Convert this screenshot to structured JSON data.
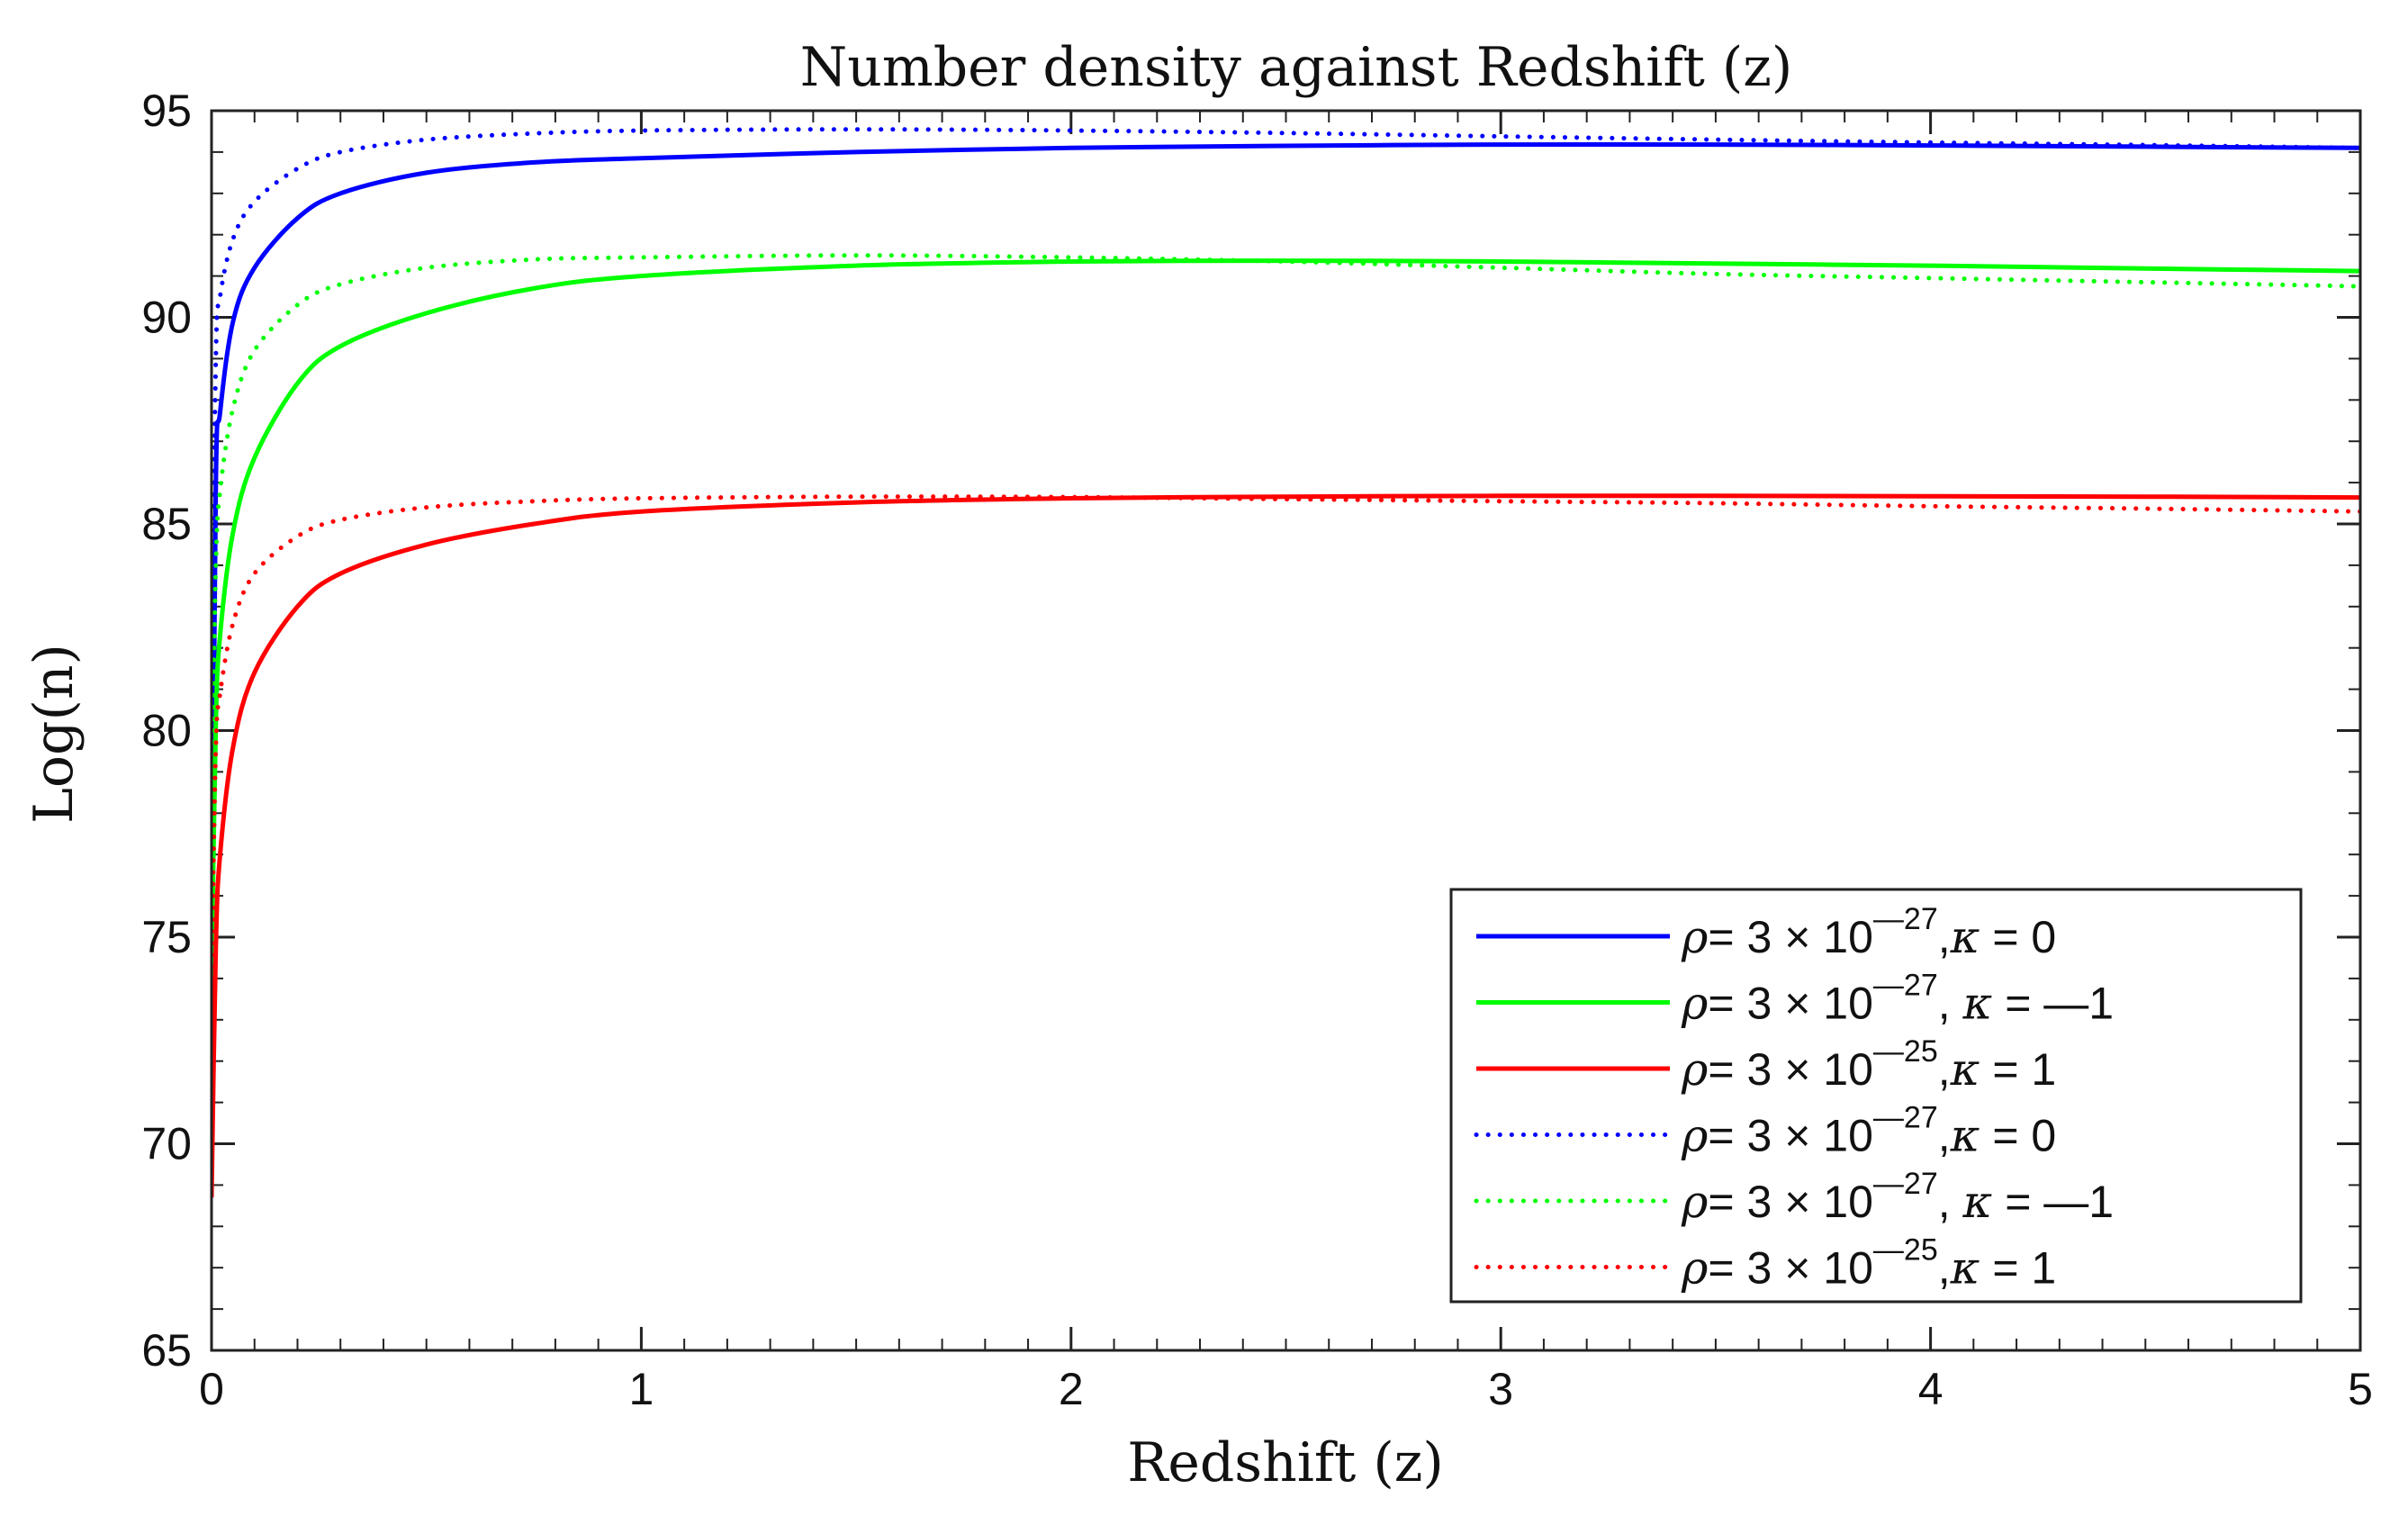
{
  "chart_data": {
    "type": "line",
    "title": "Number density against Redshift (z)",
    "xlabel": "Redshift (z)",
    "ylabel": "Log(n)",
    "xlim": [
      0,
      5
    ],
    "ylim": [
      65,
      95
    ],
    "xticks": [
      0,
      1,
      2,
      3,
      4,
      5
    ],
    "yticks": [
      65,
      70,
      75,
      80,
      85,
      90,
      95
    ],
    "x": [
      0.0,
      0.01,
      0.02,
      0.05,
      0.1,
      0.2,
      0.3,
      0.5,
      0.75,
      1.0,
      1.5,
      2.0,
      2.5,
      3.0,
      3.5,
      4.0,
      4.5,
      5.0
    ],
    "legend_location": "bottom-right",
    "series": [
      {
        "name": "rho=3e-27, kappa=0 (solid)",
        "color": "#0000ff",
        "style": "solid",
        "legend": {
          "rho": "ρ",
          "eq1": "= 3 × 10",
          "exp": "—27",
          "sep": ",",
          "kappa": "κ",
          "eq2": " = 0"
        },
        "values": [
          74.0,
          86.0,
          87.7,
          89.9,
          91.2,
          92.4,
          93.0,
          93.5,
          93.75,
          93.85,
          94.0,
          94.1,
          94.15,
          94.18,
          94.18,
          94.16,
          94.13,
          94.1
        ]
      },
      {
        "name": "rho=3e-27, kappa=-1 (solid)",
        "color": "#00ff00",
        "style": "solid",
        "legend": {
          "rho": "ρ",
          "eq1": "= 3 × 10",
          "exp": "—27",
          "sep": ", ",
          "kappa": "κ",
          "eq2": " = —1"
        },
        "values": [
          74.0,
          80.2,
          82.3,
          84.8,
          86.6,
          88.4,
          89.3,
          90.1,
          90.7,
          91.0,
          91.25,
          91.35,
          91.37,
          91.35,
          91.3,
          91.25,
          91.18,
          91.12
        ]
      },
      {
        "name": "rho=3e-25, kappa=1 (solid)",
        "color": "#ff0000",
        "style": "solid",
        "legend": {
          "rho": "ρ",
          "eq1": "= 3 × 10",
          "exp": "—25",
          "sep": ",",
          "kappa": "κ",
          "eq2": " = 1"
        },
        "values": [
          68.7,
          74.8,
          77.0,
          79.6,
          81.4,
          83.0,
          83.8,
          84.5,
          85.0,
          85.3,
          85.52,
          85.62,
          85.66,
          85.68,
          85.68,
          85.67,
          85.66,
          85.64
        ]
      },
      {
        "name": "rho=3e-27, kappa=0 (dotted)",
        "color": "#0000ff",
        "style": "dotted",
        "legend": {
          "rho": "ρ",
          "eq1": "= 3 × 10",
          "exp": "—27",
          "sep": ",",
          "kappa": "κ",
          "eq2": " = 0"
        },
        "values": [
          80.0,
          89.0,
          90.5,
          91.9,
          92.8,
          93.6,
          94.0,
          94.3,
          94.45,
          94.52,
          94.55,
          94.52,
          94.46,
          94.38,
          94.3,
          94.23,
          94.17,
          94.1
        ]
      },
      {
        "name": "rho=3e-27, kappa=-1 (dotted)",
        "color": "#00ff00",
        "style": "dotted",
        "legend": {
          "rho": "ρ",
          "eq1": "= 3 × 10",
          "exp": "—27",
          "sep": ", ",
          "kappa": "κ",
          "eq2": " = —1"
        },
        "values": [
          78.0,
          84.0,
          85.8,
          87.8,
          89.2,
          90.3,
          90.8,
          91.2,
          91.4,
          91.45,
          91.5,
          91.45,
          91.35,
          91.2,
          91.05,
          90.95,
          90.85,
          90.75
        ]
      },
      {
        "name": "rho=3e-25, kappa=1 (dotted)",
        "color": "#ff0000",
        "style": "dotted",
        "legend": {
          "rho": "ρ",
          "eq1": "= 3 × 10",
          "exp": "—25",
          "sep": ",",
          "kappa": "κ",
          "eq2": " = 1"
        },
        "values": [
          74.0,
          79.6,
          80.9,
          82.6,
          83.8,
          84.7,
          85.1,
          85.4,
          85.55,
          85.62,
          85.66,
          85.65,
          85.6,
          85.55,
          85.5,
          85.43,
          85.37,
          85.3
        ]
      }
    ]
  }
}
